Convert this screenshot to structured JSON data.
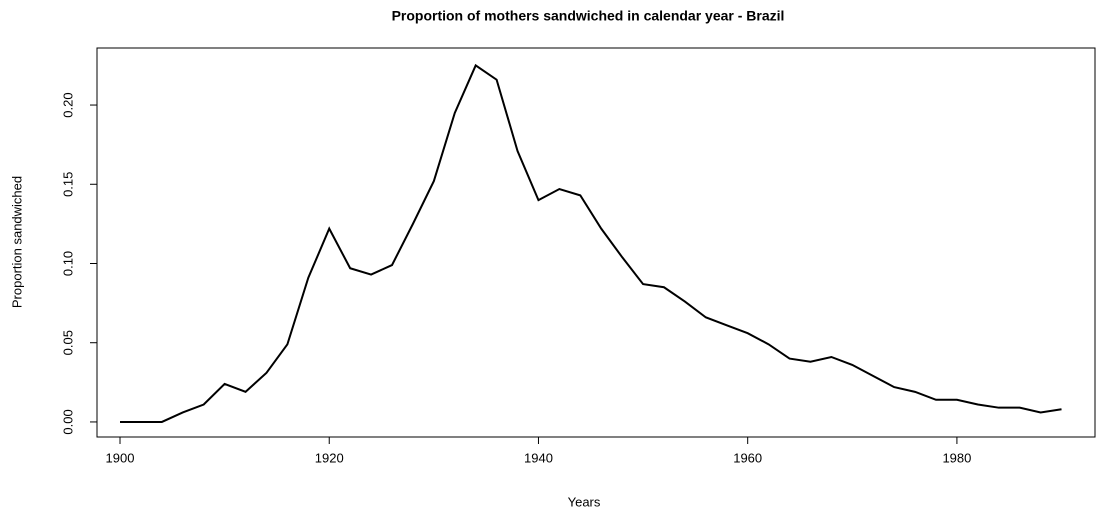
{
  "chart_data": {
    "type": "line",
    "title": "Proportion of mothers sandwiched in calendar year - Brazil",
    "x_label": "Years",
    "y_label": "Proportion sandwiched",
    "x": [
      1900,
      1902,
      1904,
      1906,
      1908,
      1910,
      1912,
      1914,
      1916,
      1918,
      1920,
      1922,
      1924,
      1926,
      1928,
      1930,
      1932,
      1934,
      1936,
      1938,
      1940,
      1942,
      1944,
      1946,
      1948,
      1950,
      1952,
      1954,
      1956,
      1958,
      1960,
      1962,
      1964,
      1966,
      1968,
      1970,
      1972,
      1974,
      1976,
      1978,
      1980,
      1982,
      1984,
      1986,
      1988,
      1990
    ],
    "series": [
      {
        "color": "#000000",
        "values": [
          0,
          0,
          0,
          0.006,
          0.011,
          0.024,
          0.019,
          0.031,
          0.049,
          0.091,
          0.122,
          0.097,
          0.093,
          0.099,
          0.125,
          0.152,
          0.195,
          0.225,
          0.216,
          0.171,
          0.14,
          0.147,
          0.143,
          0.122,
          0.104,
          0.087,
          0.085,
          0.076,
          0.066,
          0.061,
          0.056,
          0.049,
          0.04,
          0.038,
          0.041,
          0.036,
          0.029,
          0.022,
          0.019,
          0.014,
          0.014,
          0.011,
          0.009,
          0.009,
          0.006,
          0.008
        ]
      }
    ],
    "xlim": [
      1897.8,
      1993.2
    ],
    "ylim": [
      -0.0095,
      0.236
    ],
    "xticks": [
      1900,
      1920,
      1940,
      1960,
      1980
    ],
    "yticks": [
      {
        "value": 0,
        "label": "0.00"
      },
      {
        "value": 0.05,
        "label": "0.05"
      },
      {
        "value": 0.1,
        "label": "0.10"
      },
      {
        "value": 0.15,
        "label": "0.15"
      },
      {
        "value": 0.2,
        "label": "0.20"
      }
    ]
  }
}
